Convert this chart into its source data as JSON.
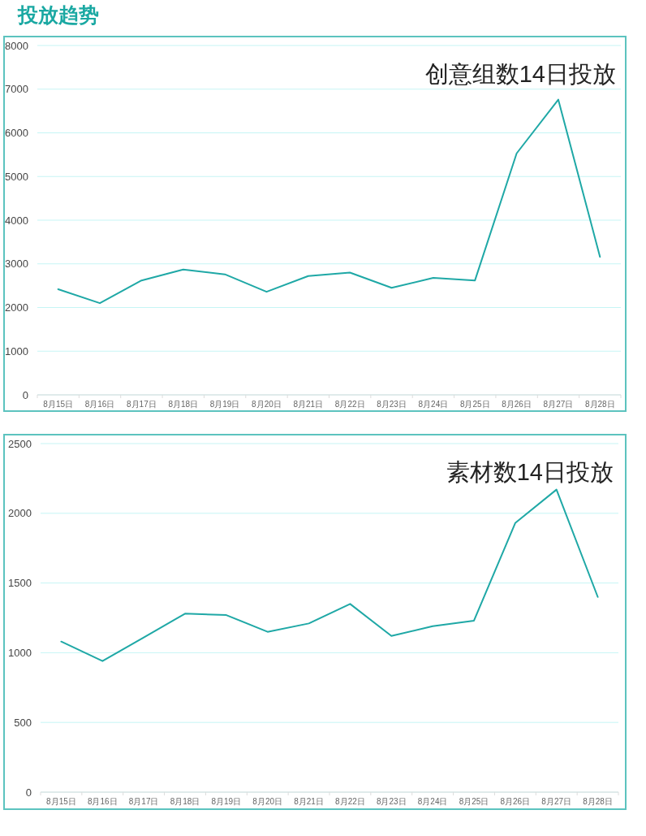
{
  "chart_data": [
    {
      "type": "other",
      "title": "投放趋势"
    },
    {
      "type": "line",
      "title": "创意组数14日投放",
      "categories": [
        "8月15日",
        "8月16日",
        "8月17日",
        "8月18日",
        "8月19日",
        "8月20日",
        "8月21日",
        "8月22日",
        "8月23日",
        "8月24日",
        "8月25日",
        "8月26日",
        "8月27日",
        "8月28日"
      ],
      "series": [
        {
          "color": "#1fa8a6",
          "values": [
            2420,
            2100,
            2620,
            2870,
            2760,
            2360,
            2720,
            2800,
            2450,
            2680,
            2620,
            5530,
            6760,
            3160
          ]
        }
      ],
      "ylim": [
        0,
        8000
      ],
      "yticks": [
        0,
        1000,
        2000,
        3000,
        4000,
        5000,
        6000,
        7000,
        8000
      ],
      "grid": "y"
    },
    {
      "type": "line",
      "title": "素材数14日投放",
      "categories": [
        "8月15日",
        "8月16日",
        "8月17日",
        "8月18日",
        "8月19日",
        "8月20日",
        "8月21日",
        "8月22日",
        "8月23日",
        "8月24日",
        "8月25日",
        "8月26日",
        "8月27日",
        "8月28日"
      ],
      "series": [
        {
          "color": "#1fa8a6",
          "values": [
            1080,
            940,
            1110,
            1280,
            1270,
            1150,
            1210,
            1350,
            1120,
            1190,
            1230,
            1930,
            2170,
            1400
          ]
        }
      ],
      "ylim": [
        0,
        2500
      ],
      "yticks": [
        0,
        500,
        1000,
        1500,
        2000,
        2500
      ],
      "grid": "y"
    }
  ]
}
